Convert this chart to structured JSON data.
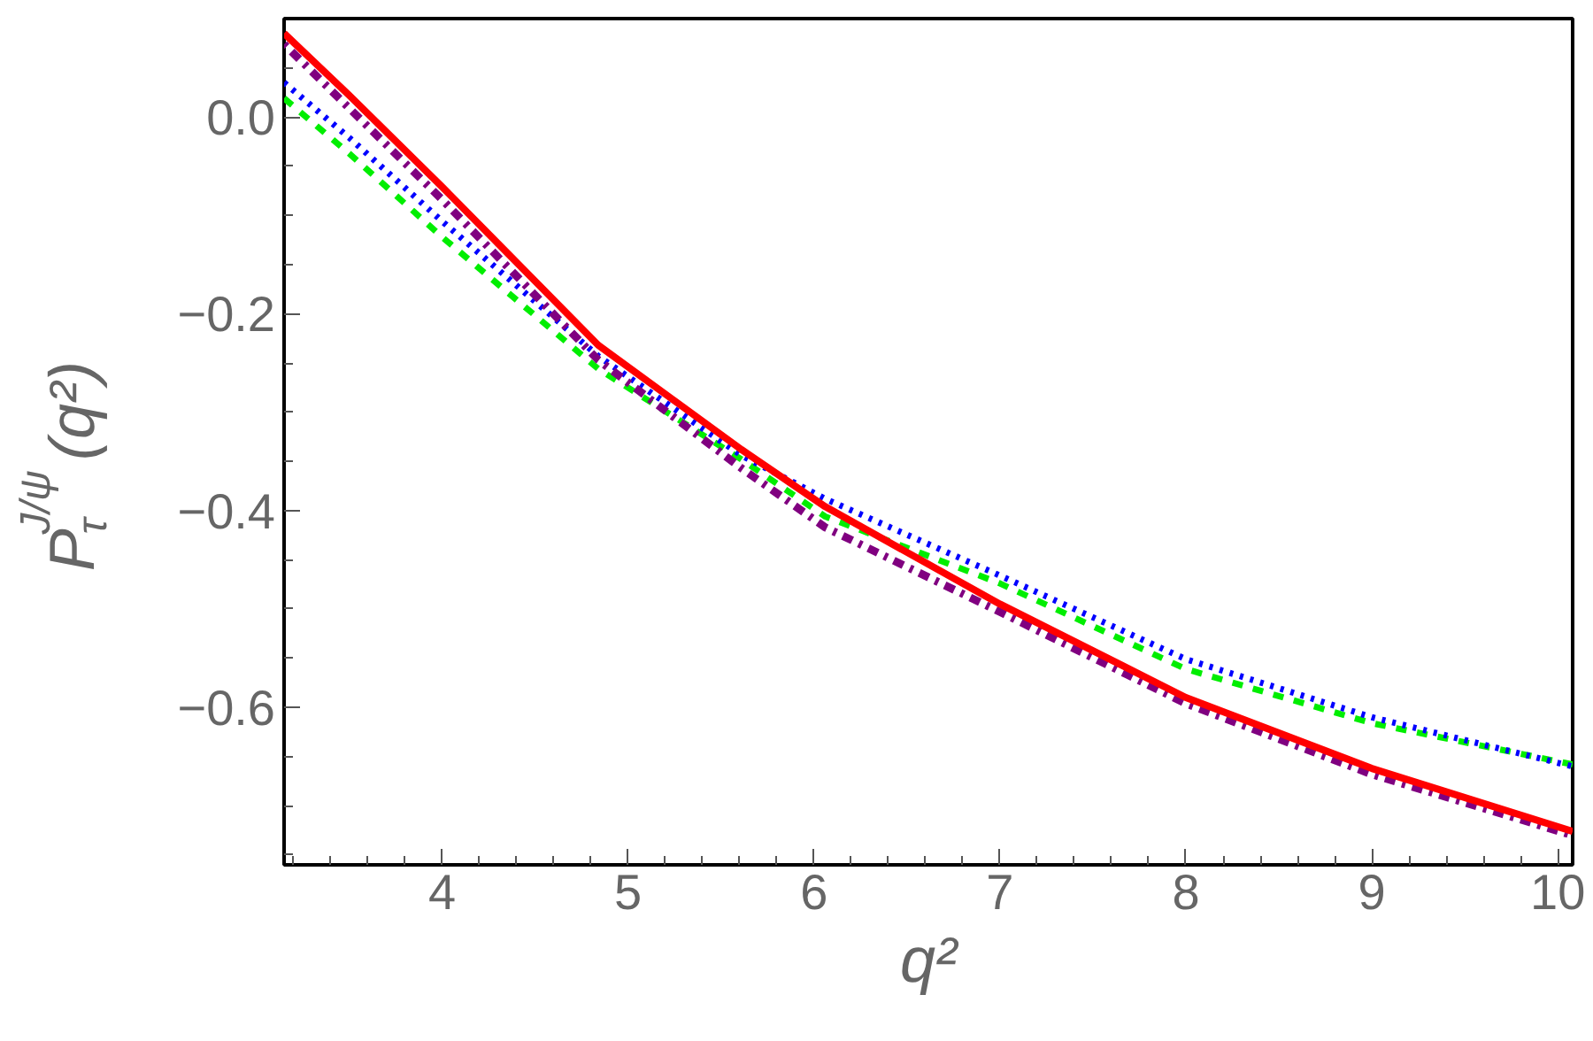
{
  "chart_data": {
    "type": "line",
    "xlabel": "q²",
    "ylabel": "P$_{τ}$$^{J/ψ}$(q²)",
    "x": [
      3.15,
      3.5,
      4,
      4.84,
      5.61,
      6.06,
      7,
      8,
      9,
      10.08
    ],
    "series": [
      {
        "color": "#00ee00",
        "line_style": "dashed",
        "values": [
          0.019,
          -0.037,
          -0.122,
          -0.256,
          -0.348,
          -0.406,
          -0.474,
          -0.561,
          -0.616,
          -0.658
        ]
      },
      {
        "color": "#0000ff",
        "line_style": "dotted",
        "values": [
          0.035,
          -0.021,
          -0.106,
          -0.243,
          -0.344,
          -0.388,
          -0.466,
          -0.551,
          -0.61,
          -0.66
        ]
      },
      {
        "color": "#800080",
        "line_style": "dashdot",
        "values": [
          0.074,
          0.009,
          -0.084,
          -0.247,
          -0.357,
          -0.417,
          -0.503,
          -0.596,
          -0.668,
          -0.73
        ]
      },
      {
        "color": "#ff0000",
        "line_style": "solid",
        "values": [
          0.085,
          0.022,
          -0.071,
          -0.232,
          -0.338,
          -0.396,
          -0.495,
          -0.59,
          -0.662,
          -0.726
        ]
      }
    ],
    "xlim": [
      3.15,
      10.08
    ],
    "ylim": [
      -0.76,
      0.1
    ],
    "xticks": [
      {
        "value": 3.2,
        "label": null
      },
      {
        "value": 3.4,
        "label": null
      },
      {
        "value": 3.6,
        "label": null
      },
      {
        "value": 3.8,
        "label": null
      },
      4,
      {
        "value": 4.2,
        "label": null
      },
      {
        "value": 4.4,
        "label": null
      },
      {
        "value": 4.6,
        "label": null
      },
      {
        "value": 4.8,
        "label": null
      },
      5,
      {
        "value": 5.2,
        "label": null
      },
      {
        "value": 5.4,
        "label": null
      },
      {
        "value": 5.6,
        "label": null
      },
      {
        "value": 5.8,
        "label": null
      },
      6,
      {
        "value": 6.2,
        "label": null
      },
      {
        "value": 6.4,
        "label": null
      },
      {
        "value": 6.6,
        "label": null
      },
      {
        "value": 6.8,
        "label": null
      },
      7,
      {
        "value": 7.2,
        "label": null
      },
      {
        "value": 7.4,
        "label": null
      },
      {
        "value": 7.6,
        "label": null
      },
      {
        "value": 7.8,
        "label": null
      },
      8,
      {
        "value": 8.2,
        "label": null
      },
      {
        "value": 8.4,
        "label": null
      },
      {
        "value": 8.6,
        "label": null
      },
      {
        "value": 8.8,
        "label": null
      },
      9,
      {
        "value": 9.2,
        "label": null
      },
      {
        "value": 9.4,
        "label": null
      },
      {
        "value": 9.6,
        "label": null
      },
      {
        "value": 9.8,
        "label": null
      },
      10
    ],
    "yticks": [
      {
        "value": -0.75,
        "label": null
      },
      {
        "value": -0.7,
        "label": null
      },
      {
        "value": -0.65,
        "label": null
      },
      {
        "value": -0.6,
        "label": "−0.6"
      },
      {
        "value": -0.55,
        "label": null
      },
      {
        "value": -0.5,
        "label": null
      },
      {
        "value": -0.45,
        "label": null
      },
      {
        "value": -0.4,
        "label": "−0.4"
      },
      {
        "value": -0.35,
        "label": null
      },
      {
        "value": -0.3,
        "label": null
      },
      {
        "value": -0.25,
        "label": null
      },
      {
        "value": -0.2,
        "label": "−0.2"
      },
      {
        "value": -0.15,
        "label": null
      },
      {
        "value": -0.1,
        "label": null
      },
      {
        "value": -0.05,
        "label": null
      },
      {
        "value": 0,
        "label": "0.0"
      },
      {
        "value": 0.05,
        "label": null
      }
    ],
    "grid": false
  }
}
